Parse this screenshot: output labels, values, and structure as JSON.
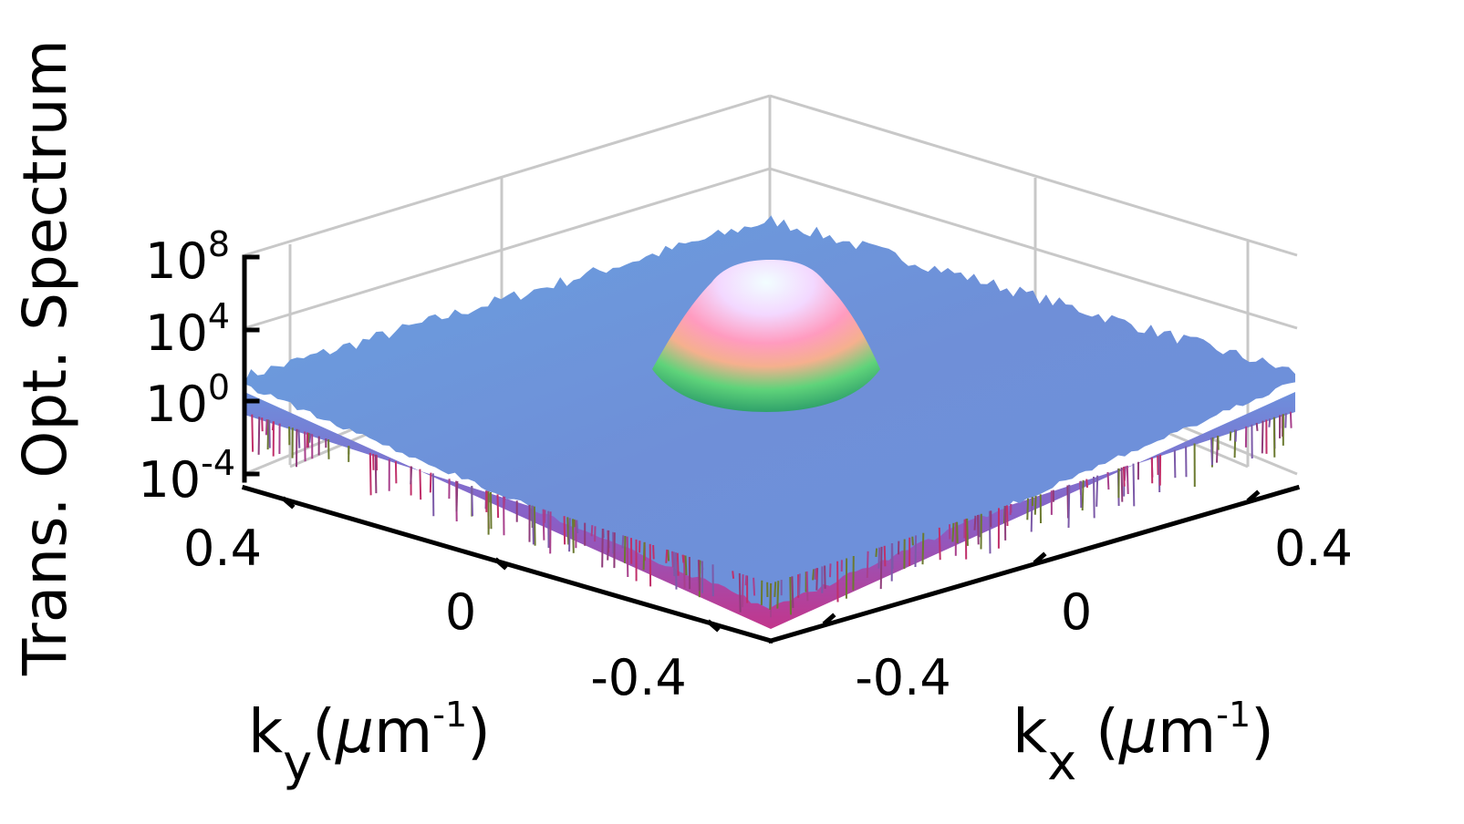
{
  "chart_data": {
    "type": "surface3d",
    "title": "",
    "zlabel": "Trans. Opt. Spectrum",
    "xlabel": {
      "base": "k",
      "sub": "x",
      "unit_open": " (",
      "mu": "μ",
      "unit_m": "m",
      "exp": "-1",
      "unit_close": ")"
    },
    "ylabel": {
      "base": "k",
      "sub": "y",
      "unit_open": "(",
      "mu": "μ",
      "unit_m": "m",
      "exp": "-1",
      "unit_close": ")"
    },
    "x_ticks": [
      "-0.4",
      "0",
      "0.4"
    ],
    "y_ticks": [
      "0.4",
      "0",
      "-0.4"
    ],
    "z_ticks": [
      {
        "base": "10",
        "exp": "8"
      },
      {
        "base": "10",
        "exp": "4"
      },
      {
        "base": "10",
        "exp": "0"
      },
      {
        "base": "10",
        "exp": "-4"
      }
    ],
    "xlim": [
      -0.6,
      0.6
    ],
    "ylim": [
      -0.6,
      0.6
    ],
    "zlim_log10": [
      -4,
      8
    ],
    "z_scale": "log",
    "grid": true,
    "noise_floor_log10": 2.5,
    "peak": {
      "kx": 0.0,
      "ky": 0.0,
      "height_log10": 7.2,
      "radius": 0.16
    },
    "colormap": [
      "#7a5fb0",
      "#2f9f5f",
      "#55d27a",
      "#f0a890",
      "#ff9ab4",
      "#f7d6ff",
      "#e8fbff"
    ],
    "floor_color": "#6d8fdc",
    "skirt_color": "#b0408a"
  }
}
